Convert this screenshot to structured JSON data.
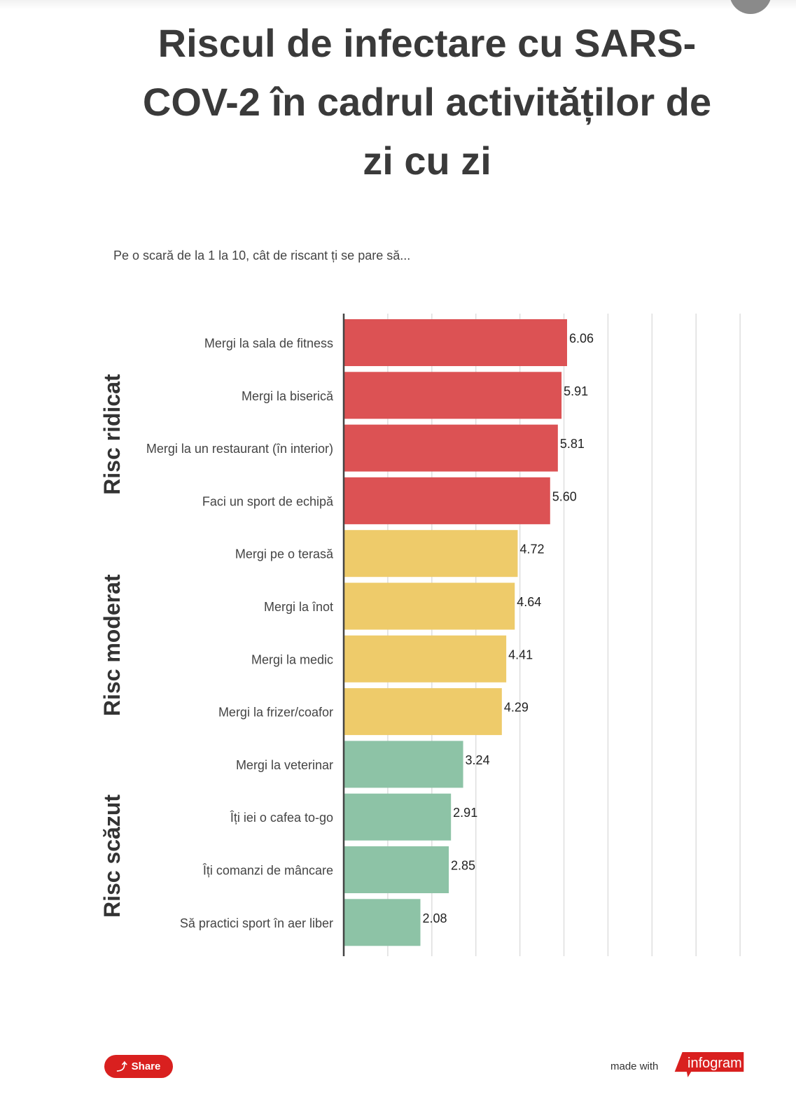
{
  "title": "Riscul de infectare cu SARS-COV-2 în cadrul activităților de zi cu zi",
  "subtitle": "Pe o scară de la 1 la 10, cât de riscant ți se pare să...",
  "share_label": "Share",
  "made_with": "made with",
  "brand": "infogram",
  "colors": {
    "high": "#dc5254",
    "moderate": "#eecb6a",
    "low": "#8dc3a6",
    "brand": "#d9201f"
  },
  "chart_data": {
    "type": "bar",
    "orientation": "horizontal",
    "categories": [
      "Mergi la sala de fitness",
      "Mergi la biserică",
      "Mergi la un restaurant (în interior)",
      "Faci un sport de echipă",
      "Mergi pe o terasă",
      "Mergi la înot",
      "Mergi la medic",
      "Mergi la frizer/coafor",
      "Mergi la veterinar",
      "Îți iei o cafea to-go",
      "Îți comanzi de mâncare",
      "Să practici sport în aer liber"
    ],
    "values": [
      6.06,
      5.91,
      5.81,
      5.6,
      4.72,
      4.64,
      4.41,
      4.29,
      3.24,
      2.91,
      2.85,
      2.08
    ],
    "value_labels": [
      "6.06",
      "5.91",
      "5.81",
      "5.60",
      "4.72",
      "4.64",
      "4.41",
      "4.29",
      "3.24",
      "2.91",
      "2.85",
      "2.08"
    ],
    "groups": [
      {
        "label": "Risc ridicat",
        "color_key": "high",
        "start": 0,
        "end": 3
      },
      {
        "label": "Risc moderat",
        "color_key": "moderate",
        "start": 4,
        "end": 7
      },
      {
        "label": "Risc scăzut",
        "color_key": "low",
        "start": 8,
        "end": 11
      }
    ],
    "xlim": [
      0,
      10.75
    ],
    "grid_step": 1.195,
    "grid": true,
    "xlabel": "",
    "ylabel": ""
  }
}
